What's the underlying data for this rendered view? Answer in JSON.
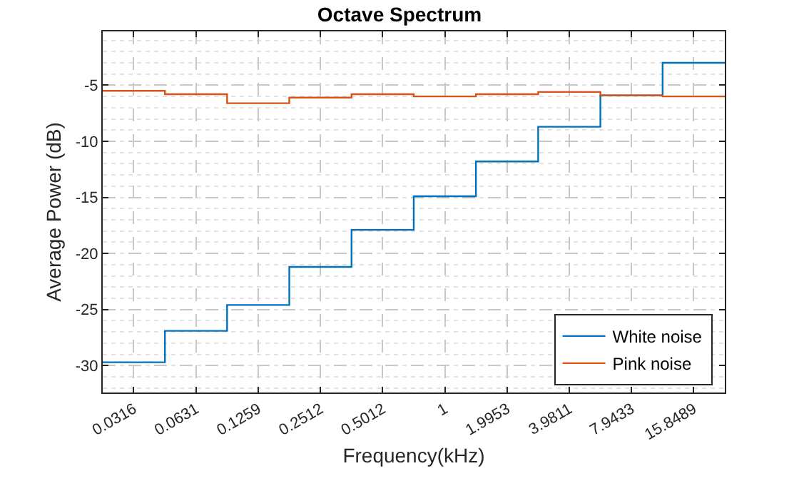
{
  "chart_data": {
    "type": "step",
    "title": "Octave Spectrum",
    "xlabel": "Frequency(kHz)",
    "ylabel": "Average Power (dB)",
    "x": [
      0.0224,
      0.0447,
      0.0891,
      0.1778,
      0.3548,
      0.7079,
      1.4125,
      2.8184,
      5.6234,
      11.2202,
      22.3872
    ],
    "series": [
      {
        "name": "White noise",
        "color": "#0072bd",
        "values": [
          -29.7,
          -26.9,
          -24.6,
          -21.2,
          -17.9,
          -14.9,
          -11.8,
          -8.7,
          -5.9,
          -3.0,
          -3.0
        ]
      },
      {
        "name": "Pink noise",
        "color": "#d95319",
        "values": [
          -5.5,
          -5.8,
          -6.6,
          -6.1,
          -5.8,
          -6.0,
          -5.8,
          -5.6,
          -5.9,
          -6.0,
          -6.0
        ]
      }
    ],
    "log": "x",
    "xlim": [
      0.0224,
      22.3872
    ],
    "xticks": [
      0.0316,
      0.0631,
      0.1259,
      0.2512,
      0.5012,
      1,
      1.9953,
      3.9811,
      7.9433,
      15.8489
    ],
    "ylim": [
      -32.4,
      -0.2
    ],
    "yticks": [
      -30,
      -25,
      -20,
      -15,
      -10,
      -5
    ],
    "grid": true,
    "legend": "bottom right",
    "marker": "none",
    "line_style": "solid"
  }
}
